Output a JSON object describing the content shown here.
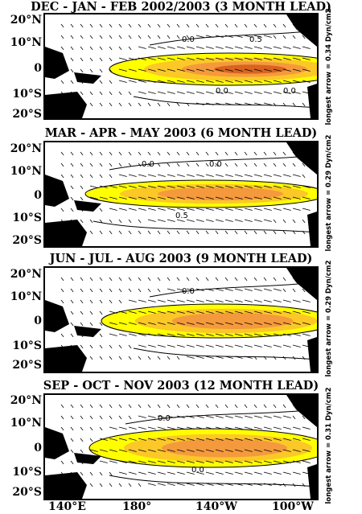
{
  "panels": [
    {
      "title": "DEC - JAN - FEB 2002/2003 (3 MONTH LEAD)",
      "scale_note": "longest arrow = 0.34 Dyn/cm2",
      "contour_labels": [
        "0.0",
        "0.0",
        "0.5",
        "0.0",
        "0.0"
      ],
      "anomaly_peak": "large"
    },
    {
      "title": "MAR - APR - MAY 2003 (6 MONTH LEAD)",
      "scale_note": "longest arrow = 0.29 Dyn/cm2",
      "contour_labels": [
        "0.0",
        "0.5",
        "0.0"
      ],
      "anomaly_peak": "medium"
    },
    {
      "title": "JUN - JUL - AUG 2003 (9 MONTH LEAD)",
      "scale_note": "longest arrow = 0.29 Dyn/cm2",
      "contour_labels": [
        "0.0"
      ],
      "anomaly_peak": "medium"
    },
    {
      "title": "SEP - OCT - NOV 2003 (12 MONTH LEAD)",
      "scale_note": "longest arrow = 0.31 Dyn/cm2",
      "contour_labels": [
        "0.0",
        "0.0"
      ],
      "anomaly_peak": "medium"
    }
  ],
  "lat_labels": [
    "20°N",
    "10°N",
    "0",
    "10°S",
    "20°S"
  ],
  "lon_labels": [
    "140°E",
    "180°",
    "140°W",
    "100°W"
  ],
  "colors": {
    "land": "#000000",
    "shade_low": "#ffff00",
    "shade_mid": "#fbc828",
    "shade_high": "#f49a3c",
    "shade_peak": "#d86420"
  }
}
